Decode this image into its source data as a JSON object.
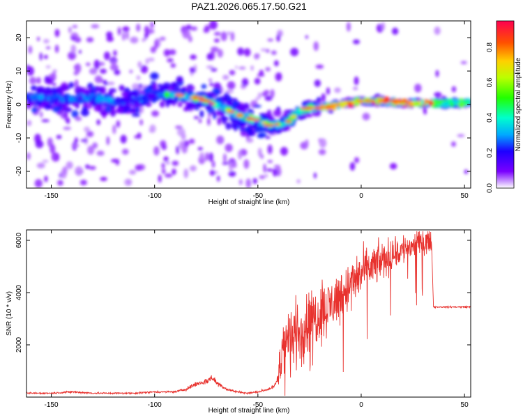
{
  "figure": {
    "title": "PAZ1.2026.065.17.50.G21"
  },
  "chart_data": [
    {
      "type": "heatmap",
      "title": "PAZ1.2026.065.17.50.G21",
      "xlabel": "Height of straight line (km)",
      "ylabel": "Frequency (Hz)",
      "xlim": [
        -162,
        53
      ],
      "ylim": [
        -25,
        25
      ],
      "xticks": [
        -150,
        -100,
        -50,
        0,
        50
      ],
      "yticks": [
        -20,
        -10,
        0,
        10,
        20
      ],
      "ridge": {
        "x": [
          -160,
          -150,
          -140,
          -130,
          -120,
          -110,
          -100,
          -90,
          -80,
          -70,
          -60,
          -50,
          -45,
          -40,
          -35,
          -30,
          -25,
          -20,
          -10,
          0,
          10,
          20,
          30,
          40,
          53
        ],
        "y": [
          2,
          2,
          1.5,
          2,
          1,
          1,
          3,
          3,
          2,
          0,
          -3,
          -5,
          -6,
          -6,
          -5,
          -2,
          -1,
          -1,
          0,
          1,
          1,
          0.5,
          0.5,
          0.5,
          0.5
        ]
      },
      "colorbar": {
        "label": "Normalized spectral amplitude",
        "range": [
          0,
          0.95
        ],
        "ticks": [
          "0.0",
          "0.2",
          "0.4",
          "0.6",
          "0.8"
        ]
      }
    },
    {
      "type": "line",
      "xlabel": "Height of straight line (km)",
      "ylabel": "SNR (10 * v/v)",
      "xlim": [
        -162,
        53
      ],
      "ylim": [
        0,
        6400
      ],
      "xticks": [
        -150,
        -100,
        -50,
        0,
        50
      ],
      "yticks": [
        2000,
        4000,
        6000
      ],
      "color": "#e8322e",
      "series": [
        {
          "name": "SNR",
          "x": [
            -162,
            -150,
            -140,
            -130,
            -120,
            -110,
            -100,
            -90,
            -85,
            -80,
            -75,
            -72,
            -70,
            -65,
            -60,
            -55,
            -50,
            -45,
            -42,
            -40,
            -38,
            -35,
            -32,
            -30,
            -28,
            -25,
            -20,
            -15,
            -10,
            -5,
            0,
            5,
            10,
            15,
            20,
            25,
            30,
            34,
            35,
            36,
            40,
            45,
            53
          ],
          "y": [
            150,
            150,
            200,
            150,
            150,
            150,
            200,
            200,
            300,
            500,
            600,
            750,
            550,
            300,
            200,
            150,
            200,
            300,
            400,
            800,
            2000,
            2200,
            2400,
            2500,
            2700,
            2900,
            3200,
            3500,
            3900,
            4300,
            4700,
            5000,
            5200,
            5450,
            5650,
            5800,
            5950,
            6000,
            3450,
            3450,
            3450,
            3450,
            3450
          ]
        }
      ]
    }
  ]
}
